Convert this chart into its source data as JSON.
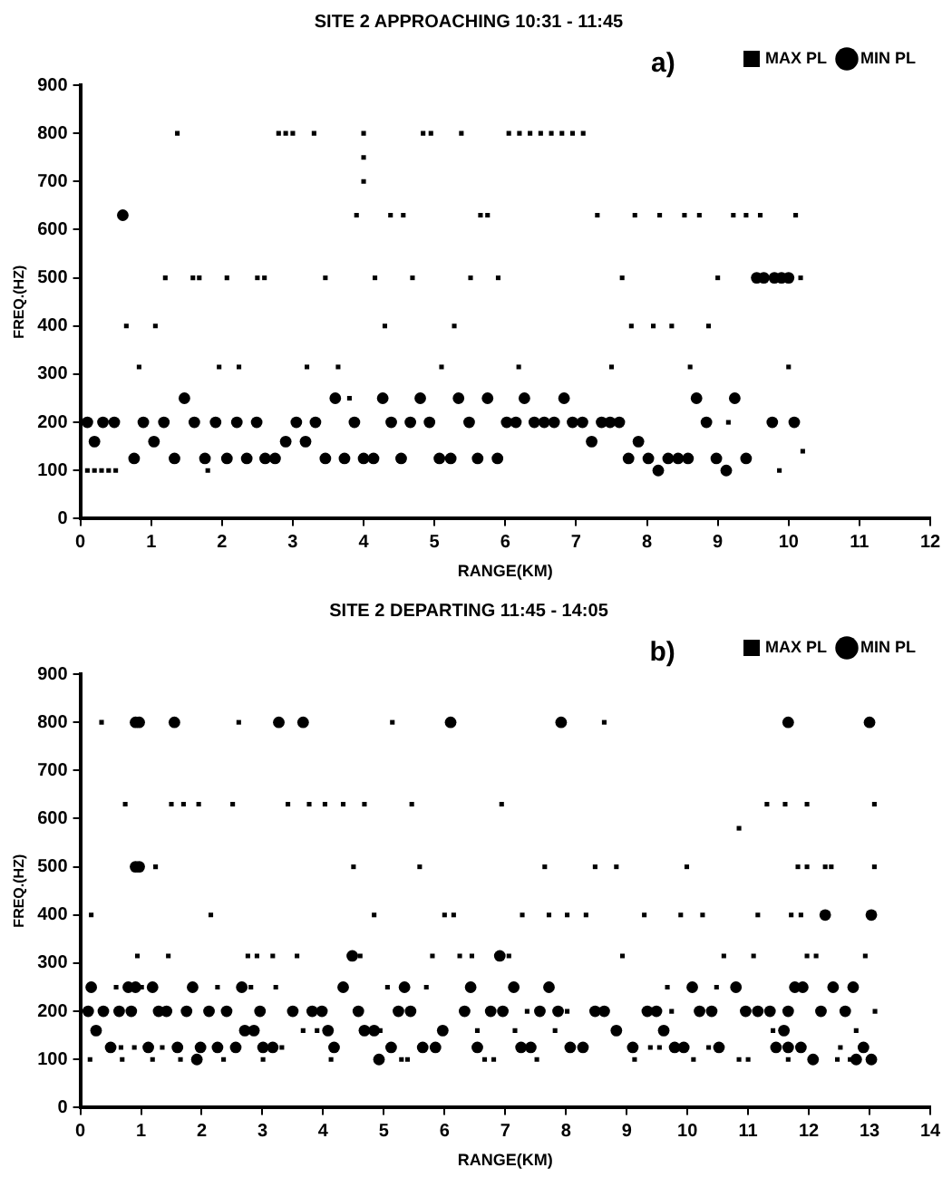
{
  "chart_data": [
    {
      "type": "scatter",
      "title": "SITE 2 APPROACHING 10:31 - 11:45",
      "annotations": [
        "a)"
      ],
      "xlabel": "RANGE(KM)",
      "ylabel": "FREQ.(HZ)",
      "xlim": [
        0,
        12
      ],
      "xticks": [
        0,
        1,
        2,
        3,
        4,
        5,
        6,
        7,
        8,
        9,
        10,
        11,
        12
      ],
      "ylim": [
        0,
        900
      ],
      "yticks": [
        0,
        100,
        200,
        300,
        400,
        500,
        600,
        700,
        800,
        900
      ],
      "grid": false,
      "legend": "top right",
      "series": [
        {
          "name": "MAX PL",
          "color": "#000000",
          "marker": "square",
          "x": [
            0.1,
            0.2,
            0.3,
            0.4,
            0.5,
            0.65,
            0.83,
            1.06,
            1.37,
            1.2,
            1.59,
            1.68,
            1.8,
            2.07,
            1.96,
            2.24,
            2.5,
            2.6,
            3.2,
            3.46,
            3.64,
            3.8,
            2.8,
            2.9,
            3.0,
            3.3,
            4.0,
            4.0,
            4.0,
            3.9,
            4.38,
            4.56,
            4.16,
            4.3,
            4.84,
            4.95,
            4.69,
            5.1,
            5.38,
            5.65,
            5.75,
            5.28,
            5.51,
            5.9,
            6.05,
            6.2,
            6.35,
            6.5,
            6.65,
            6.8,
            6.95,
            7.1,
            6.19,
            7.3,
            7.65,
            7.5,
            7.78,
            8.09,
            8.35,
            7.83,
            8.18,
            8.53,
            8.74,
            8.61,
            8.87,
            9.0,
            9.15,
            9.22,
            9.4,
            9.6,
            10.1,
            10.0,
            9.87,
            10.2,
            10.17
          ],
          "values": [
            100,
            100,
            100,
            100,
            100,
            400,
            315,
            400,
            800,
            500,
            500,
            500,
            100,
            500,
            315,
            315,
            500,
            500,
            315,
            500,
            315,
            250,
            800,
            800,
            800,
            800,
            800,
            750,
            700,
            630,
            630,
            630,
            500,
            400,
            800,
            800,
            500,
            315,
            800,
            630,
            630,
            400,
            500,
            500,
            800,
            800,
            800,
            800,
            800,
            800,
            800,
            800,
            315,
            630,
            500,
            315,
            400,
            400,
            400,
            630,
            630,
            630,
            630,
            315,
            400,
            500,
            200,
            630,
            630,
            630,
            630,
            315,
            100,
            140,
            500
          ]
        },
        {
          "name": "MIN PL",
          "color": "#000000",
          "marker": "circle",
          "x": [
            0.1,
            0.2,
            0.32,
            0.48,
            0.6,
            0.76,
            0.89,
            1.04,
            1.18,
            1.33,
            1.47,
            1.61,
            1.76,
            1.91,
            2.07,
            2.21,
            2.35,
            2.49,
            2.61,
            2.75,
            2.9,
            3.05,
            3.18,
            3.32,
            3.46,
            3.6,
            3.73,
            3.87,
            4.0,
            4.14,
            4.27,
            4.39,
            4.53,
            4.66,
            4.8,
            4.93,
            5.07,
            5.23,
            5.34,
            5.49,
            5.61,
            5.75,
            5.89,
            6.02,
            6.15,
            6.27,
            6.41,
            6.55,
            6.69,
            6.83,
            6.95,
            7.09,
            7.22,
            7.36,
            7.48,
            7.61,
            7.74,
            7.88,
            8.02,
            8.16,
            8.3,
            8.44,
            8.58,
            8.7,
            8.84,
            8.98,
            9.12,
            9.24,
            9.4,
            9.55,
            9.65,
            9.8,
            9.9,
            10.0,
            9.77,
            10.08
          ],
          "values": [
            200,
            160,
            200,
            200,
            630,
            125,
            200,
            160,
            200,
            125,
            250,
            200,
            125,
            200,
            125,
            200,
            125,
            200,
            125,
            125,
            160,
            200,
            160,
            200,
            125,
            250,
            125,
            200,
            125,
            125,
            250,
            200,
            125,
            200,
            250,
            200,
            125,
            125,
            250,
            200,
            125,
            250,
            125,
            200,
            200,
            250,
            200,
            200,
            200,
            250,
            200,
            200,
            160,
            200,
            200,
            200,
            125,
            160,
            125,
            100,
            125,
            125,
            125,
            250,
            200,
            125,
            100,
            250,
            125,
            500,
            500,
            500,
            500,
            500,
            200,
            200
          ]
        }
      ]
    },
    {
      "type": "scatter",
      "title": "SITE 2 DEPARTING 11:45 - 14:05",
      "annotations": [
        "b)"
      ],
      "xlabel": "RANGE(KM)",
      "ylabel": "FREQ.(HZ)",
      "xlim": [
        0,
        14
      ],
      "xticks": [
        0,
        1,
        2,
        3,
        4,
        5,
        6,
        7,
        8,
        9,
        10,
        11,
        12,
        13,
        14
      ],
      "ylim": [
        0,
        900
      ],
      "yticks": [
        0,
        100,
        200,
        300,
        400,
        500,
        600,
        700,
        800,
        900
      ],
      "grid": false,
      "legend": "top right",
      "series": [
        {
          "name": "MAX PL",
          "color": "#000000",
          "marker": "square",
          "x": [
            0.35,
            2.61,
            5.14,
            8.63,
            0.74,
            1.5,
            1.7,
            1.95,
            2.51,
            3.42,
            3.77,
            4.03,
            4.33,
            4.68,
            5.46,
            6.94,
            10.85,
            11.31,
            11.61,
            11.97,
            13.08,
            1.24,
            4.5,
            5.59,
            7.65,
            8.48,
            8.83,
            9.99,
            11.82,
            11.97,
            12.27,
            12.37,
            13.08,
            0.18,
            2.15,
            4.84,
            6.0,
            6.15,
            7.28,
            7.72,
            8.02,
            8.33,
            9.29,
            9.89,
            10.25,
            11.16,
            11.71,
            11.87,
            null,
            0.94,
            1.45,
            2.76,
            2.91,
            3.17,
            3.57,
            4.61,
            5.8,
            6.25,
            6.45,
            7.06,
            8.93,
            10.6,
            11.09,
            11.97,
            12.12,
            12.93,
            0.59,
            1.01,
            2.26,
            2.81,
            3.22,
            5.06,
            5.7,
            9.67,
            10.48,
            9.74,
            7.36,
            8.02,
            13.09,
            3.67,
            3.9,
            4.94,
            6.54,
            7.16,
            7.82,
            11.41,
            12.78,
            0.67,
            0.89,
            1.35,
            null,
            3.32,
            9.39,
            9.54,
            10.35,
            12.52,
            0.16,
            0.69,
            1.19,
            1.65,
            2.36,
            3.01,
            4.13,
            5.29,
            5.39,
            6.66,
            6.81,
            7.52,
            9.13,
            10.1,
            10.85,
            11.0,
            11.66,
            12.47,
            12.68
          ],
          "values": [
            800,
            800,
            800,
            800,
            630,
            630,
            630,
            630,
            630,
            630,
            630,
            630,
            630,
            630,
            630,
            630,
            580,
            630,
            630,
            630,
            630,
            500,
            500,
            500,
            500,
            500,
            500,
            500,
            500,
            500,
            500,
            500,
            500,
            400,
            400,
            400,
            400,
            400,
            400,
            400,
            400,
            400,
            400,
            400,
            400,
            400,
            400,
            400,
            null,
            315,
            315,
            315,
            315,
            315,
            315,
            315,
            315,
            315,
            315,
            315,
            315,
            315,
            315,
            315,
            315,
            315,
            250,
            250,
            250,
            250,
            250,
            250,
            250,
            250,
            250,
            200,
            200,
            200,
            200,
            160,
            160,
            160,
            160,
            160,
            160,
            160,
            160,
            125,
            125,
            125,
            null,
            125,
            125,
            125,
            125,
            125,
            100,
            100,
            100,
            100,
            100,
            100,
            100,
            100,
            100,
            100,
            100,
            100,
            100,
            100,
            100,
            100,
            100,
            100,
            100
          ]
        },
        {
          "name": "MIN PL",
          "color": "#000000",
          "marker": "circle",
          "x": [
            0.91,
            0.97,
            1.55,
            3.27,
            3.67,
            6.1,
            7.92,
            11.66,
            13.0,
            0.91,
            0.97,
            12.27,
            13.03,
            4.48,
            6.91,
            0.18,
            0.79,
            0.91,
            1.19,
            1.85,
            2.66,
            4.33,
            5.34,
            6.43,
            7.14,
            7.72,
            10.08,
            10.8,
            11.77,
            11.9,
            12.4,
            12.73,
            0.13,
            0.38,
            0.64,
            0.84,
            1.29,
            1.42,
            1.75,
            2.12,
            2.41,
            2.96,
            3.5,
            3.82,
            3.98,
            4.58,
            5.24,
            5.44,
            6.33,
            6.76,
            6.96,
            7.57,
            7.87,
            8.48,
            8.63,
            9.34,
            9.49,
            10.2,
            10.4,
            10.96,
            11.16,
            11.36,
            11.66,
            12.2,
            12.6,
            0.26,
            2.71,
            2.86,
            4.08,
            4.68,
            4.84,
            5.97,
            8.83,
            9.61,
            11.59,
            0.5,
            1.12,
            1.6,
            1.98,
            2.26,
            2.56,
            3.01,
            3.17,
            4.18,
            5.12,
            5.64,
            5.85,
            6.54,
            7.26,
            7.42,
            8.07,
            8.28,
            9.1,
            9.79,
            9.94,
            10.52,
            11.46,
            11.66,
            11.87,
            12.9,
            1.92,
            4.92,
            12.07,
            12.78,
            13.03
          ],
          "values": [
            800,
            800,
            800,
            800,
            800,
            800,
            800,
            800,
            800,
            500,
            500,
            400,
            400,
            315,
            315,
            250,
            250,
            250,
            250,
            250,
            250,
            250,
            250,
            250,
            250,
            250,
            250,
            250,
            250,
            250,
            250,
            250,
            200,
            200,
            200,
            200,
            200,
            200,
            200,
            200,
            200,
            200,
            200,
            200,
            200,
            200,
            200,
            200,
            200,
            200,
            200,
            200,
            200,
            200,
            200,
            200,
            200,
            200,
            200,
            200,
            200,
            200,
            200,
            200,
            200,
            160,
            160,
            160,
            160,
            160,
            160,
            160,
            160,
            160,
            160,
            125,
            125,
            125,
            125,
            125,
            125,
            125,
            125,
            125,
            125,
            125,
            125,
            125,
            125,
            125,
            125,
            125,
            125,
            125,
            125,
            125,
            125,
            125,
            125,
            125,
            100,
            100,
            100,
            100,
            100
          ]
        }
      ]
    }
  ]
}
